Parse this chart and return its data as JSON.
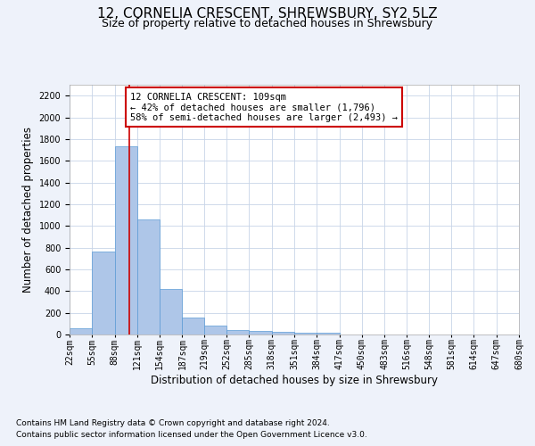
{
  "title": "12, CORNELIA CRESCENT, SHREWSBURY, SY2 5LZ",
  "subtitle": "Size of property relative to detached houses in Shrewsbury",
  "xlabel": "Distribution of detached houses by size in Shrewsbury",
  "ylabel": "Number of detached properties",
  "footer_line1": "Contains HM Land Registry data © Crown copyright and database right 2024.",
  "footer_line2": "Contains public sector information licensed under the Open Government Licence v3.0.",
  "bin_edges": [
    22,
    55,
    88,
    121,
    154,
    187,
    219,
    252,
    285,
    318,
    351,
    384,
    417,
    450,
    483,
    516,
    548,
    581,
    614,
    647,
    680
  ],
  "bin_labels": [
    "22sqm",
    "55sqm",
    "88sqm",
    "121sqm",
    "154sqm",
    "187sqm",
    "219sqm",
    "252sqm",
    "285sqm",
    "318sqm",
    "351sqm",
    "384sqm",
    "417sqm",
    "450sqm",
    "483sqm",
    "516sqm",
    "548sqm",
    "581sqm",
    "614sqm",
    "647sqm",
    "680sqm"
  ],
  "bar_heights": [
    55,
    760,
    1730,
    1060,
    420,
    155,
    80,
    45,
    35,
    22,
    18,
    15,
    0,
    0,
    0,
    0,
    0,
    0,
    0,
    0
  ],
  "bar_color": "#aec6e8",
  "bar_edgecolor": "#5b9bd5",
  "property_size": 109,
  "property_line_color": "#cc0000",
  "annotation_line1": "12 CORNELIA CRESCENT: 109sqm",
  "annotation_line2": "← 42% of detached houses are smaller (1,796)",
  "annotation_line3": "58% of semi-detached houses are larger (2,493) →",
  "annotation_box_color": "#cc0000",
  "ylim": [
    0,
    2300
  ],
  "yticks": [
    0,
    200,
    400,
    600,
    800,
    1000,
    1200,
    1400,
    1600,
    1800,
    2000,
    2200
  ],
  "bg_color": "#eef2fa",
  "plot_bg_color": "#ffffff",
  "grid_color": "#c8d4e8",
  "title_fontsize": 11,
  "subtitle_fontsize": 9,
  "axis_label_fontsize": 8.5,
  "tick_fontsize": 7,
  "annotation_fontsize": 7.5,
  "footer_fontsize": 6.5
}
